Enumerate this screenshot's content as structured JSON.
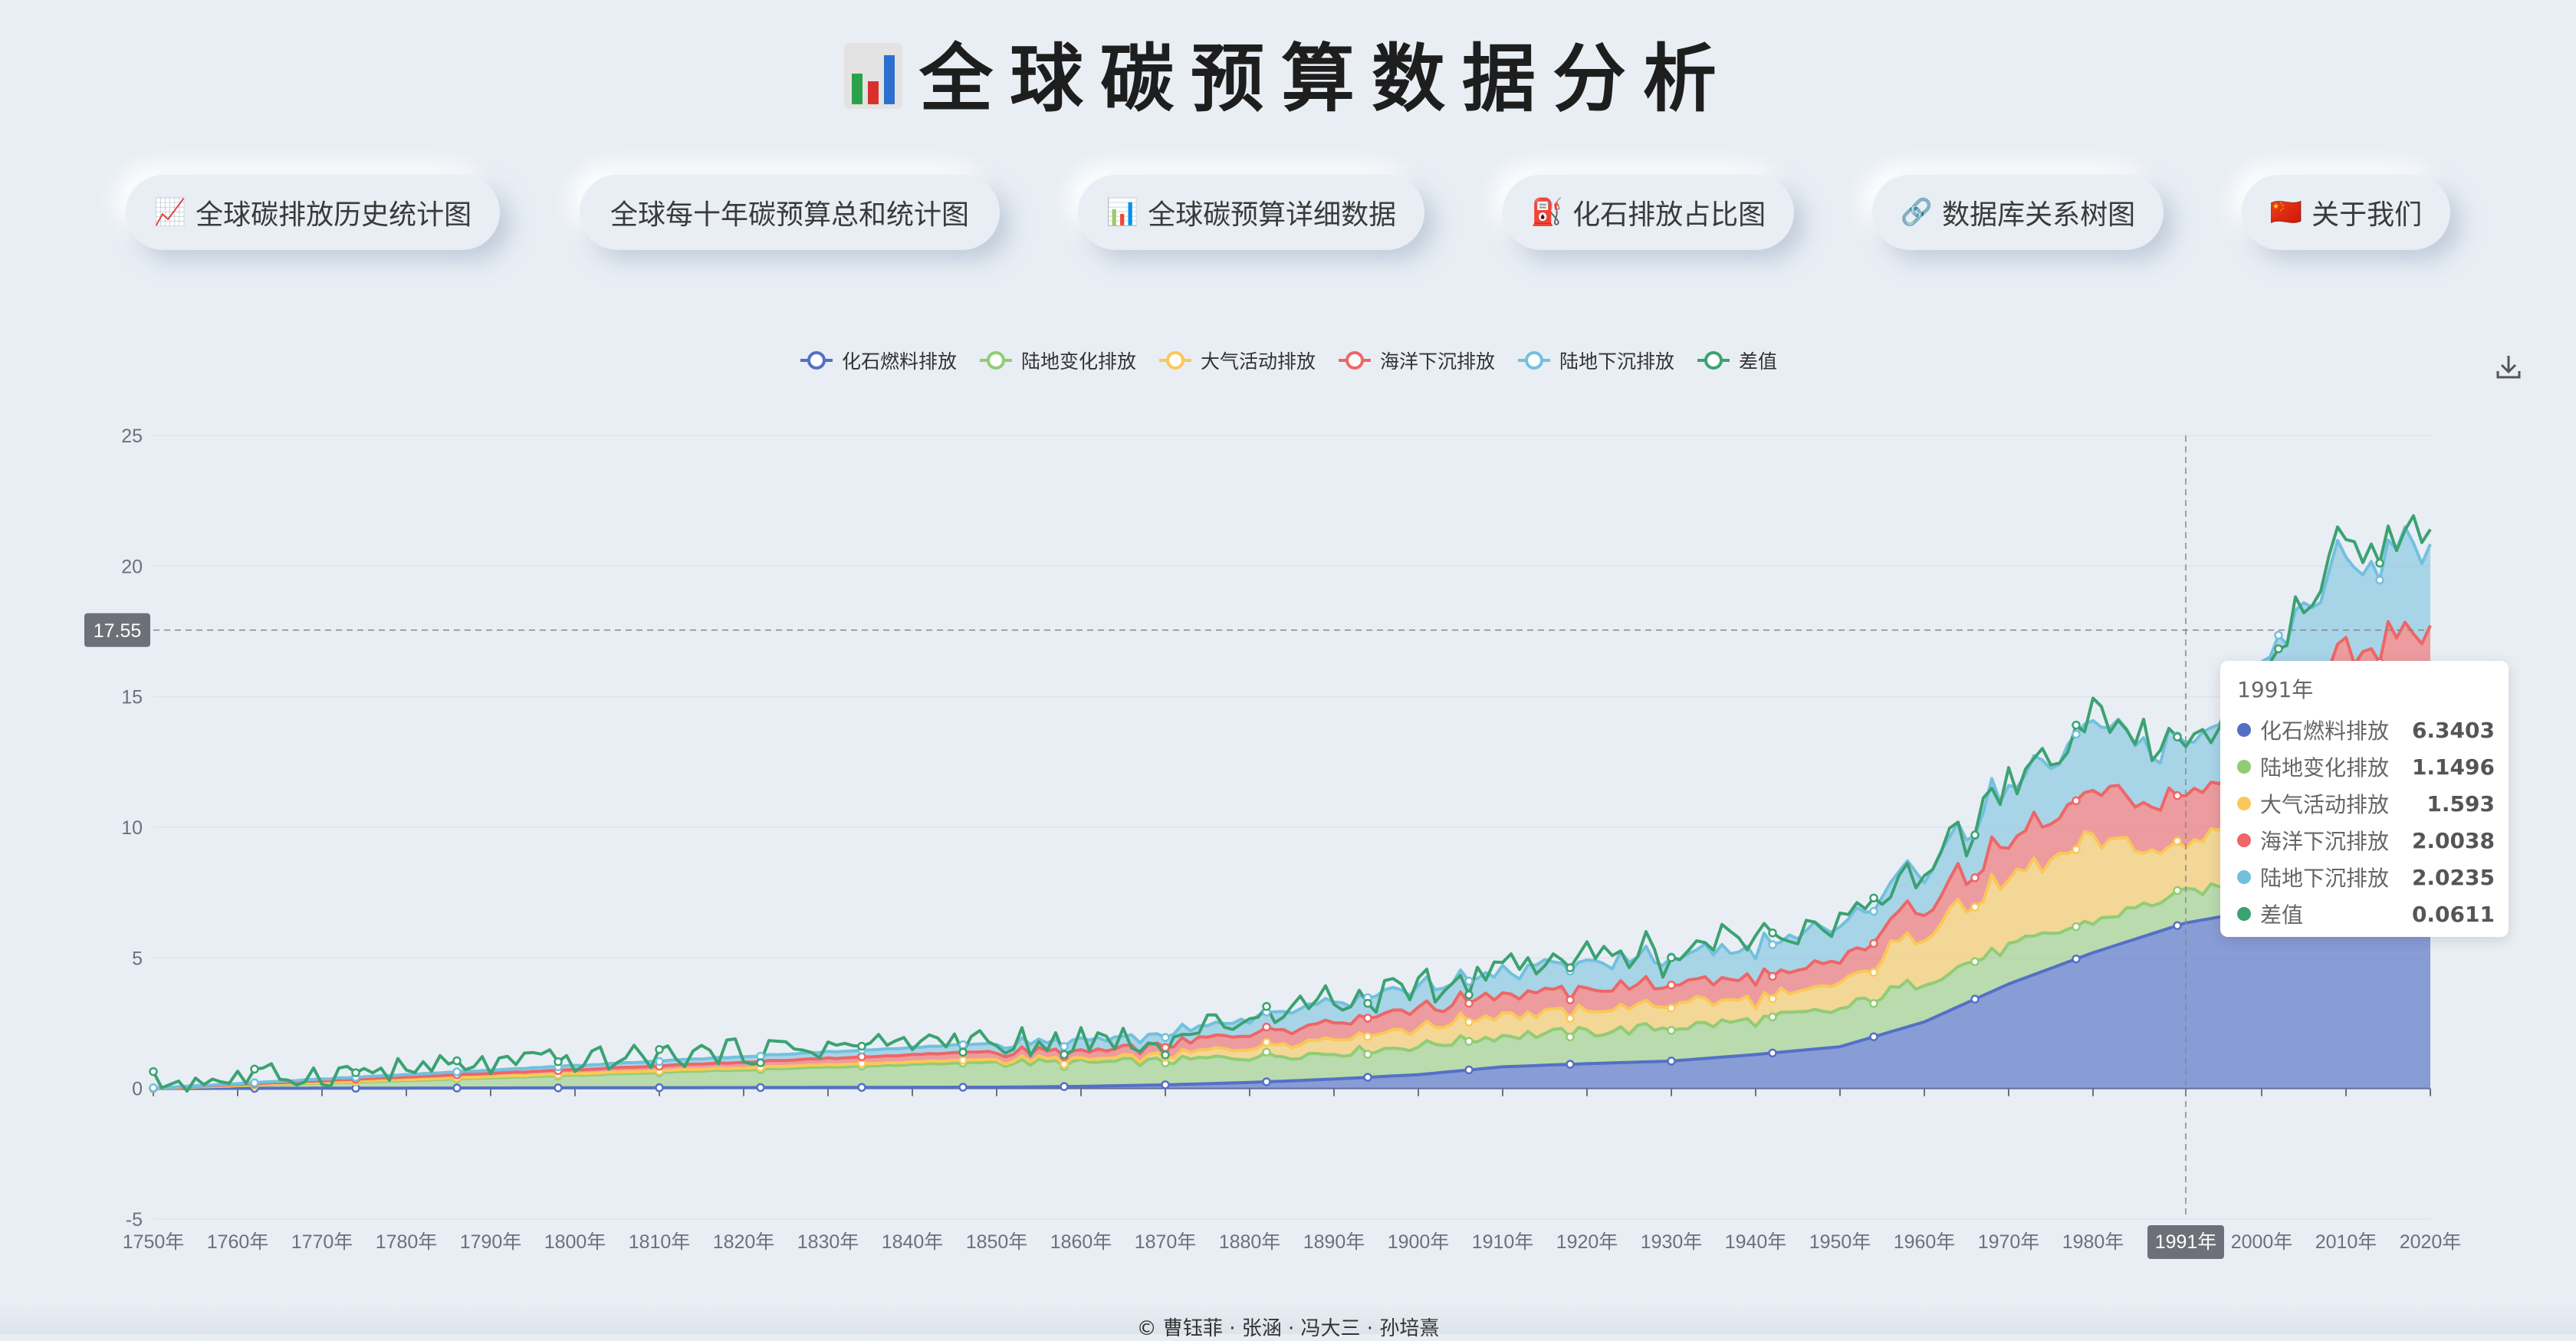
{
  "title": "全球碳预算数据分析",
  "nav": [
    {
      "icon": "📈",
      "label": "全球碳排放历史统计图"
    },
    {
      "icon": "",
      "label": "全球每十年碳预算总和统计图"
    },
    {
      "icon": "📊",
      "label": "全球碳预算详细数据"
    },
    {
      "icon": "⛽",
      "label": "化石排放占比图"
    },
    {
      "icon": "🔗",
      "label": "数据库关系树图"
    },
    {
      "icon": "🇨🇳",
      "label": "关于我们"
    }
  ],
  "footer": "© 曹钰菲 · 张涵 · 冯大三 · 孙培熹",
  "colors": {
    "fossil": "#5470c6",
    "land_use": "#91cc75",
    "atmosphere": "#fac858",
    "ocean": "#ee6666",
    "land_sink": "#73c0de",
    "imbalance": "#3ba272"
  },
  "chart_data": {
    "type": "area",
    "stacked": true,
    "legend": [
      "化石燃料排放",
      "陆地变化排放",
      "大气活动排放",
      "海洋下沉排放",
      "陆地下沉排放",
      "差值"
    ],
    "x_ticks": [
      "1750年",
      "1760年",
      "1770年",
      "1780年",
      "1790年",
      "1800年",
      "1810年",
      "1820年",
      "1830年",
      "1840年",
      "1850年",
      "1860年",
      "1870年",
      "1880年",
      "1890年",
      "1900年",
      "1910年",
      "1920年",
      "1930年",
      "1940年",
      "1950年",
      "1960年",
      "1970年",
      "1980年",
      "1991年",
      "2000年",
      "2010年",
      "2020年"
    ],
    "ylim": [
      -5,
      25
    ],
    "y_ticks": [
      -5,
      0,
      5,
      10,
      15,
      20,
      25
    ],
    "crosshair": {
      "x_label": "1991年",
      "y_label": "17.55"
    },
    "series": [
      {
        "name": "化石燃料排放",
        "x": [
          1750,
          1850,
          1860,
          1870,
          1880,
          1890,
          1900,
          1910,
          1920,
          1930,
          1940,
          1950,
          1960,
          1970,
          1980,
          1991,
          2000,
          2010,
          2020
        ],
        "values": [
          0,
          0.05,
          0.08,
          0.14,
          0.23,
          0.36,
          0.53,
          0.83,
          0.95,
          1.05,
          1.3,
          1.6,
          2.55,
          4.0,
          5.2,
          6.34,
          6.85,
          8.9,
          9.5
        ]
      },
      {
        "name": "陆地变化排放",
        "x": [
          1750,
          1850,
          1860,
          1870,
          1880,
          1890,
          1900,
          1910,
          1920,
          1930,
          1940,
          1950,
          1960,
          1970,
          1980,
          1991,
          2000,
          2010,
          2020
        ],
        "values": [
          0,
          0.95,
          0.9,
          0.9,
          1.0,
          1.0,
          1.1,
          1.2,
          1.2,
          1.3,
          1.3,
          1.4,
          1.6,
          1.4,
          1.2,
          1.15,
          1.1,
          1.2,
          1.1
        ]
      },
      {
        "name": "大气活动排放",
        "x": [
          1750,
          1850,
          1860,
          1870,
          1880,
          1890,
          1900,
          1910,
          1920,
          1930,
          1940,
          1950,
          1960,
          1970,
          1980,
          1991,
          2000,
          2010,
          2020
        ],
        "values": [
          0,
          0.1,
          0.1,
          0.2,
          0.4,
          0.6,
          0.7,
          0.8,
          0.8,
          0.9,
          0.8,
          0.9,
          2.0,
          2.5,
          3.0,
          1.59,
          3.3,
          4.5,
          4.4
        ]
      },
      {
        "name": "海洋下沉排放",
        "x": [
          1750,
          1850,
          1860,
          1870,
          1880,
          1890,
          1900,
          1910,
          1920,
          1930,
          1940,
          1950,
          1960,
          1970,
          1980,
          1991,
          2000,
          2010,
          2020
        ],
        "values": [
          0,
          0.3,
          0.3,
          0.4,
          0.5,
          0.6,
          0.7,
          0.8,
          0.8,
          0.8,
          0.8,
          0.9,
          1.1,
          1.4,
          1.7,
          2.0,
          2.1,
          2.5,
          2.8
        ]
      },
      {
        "name": "陆地下沉排放",
        "x": [
          1750,
          1850,
          1860,
          1870,
          1880,
          1890,
          1900,
          1910,
          1920,
          1930,
          1940,
          1950,
          1960,
          1970,
          1980,
          1991,
          2000,
          2010,
          2020
        ],
        "values": [
          0,
          0.3,
          0.4,
          0.4,
          0.6,
          0.8,
          0.8,
          0.9,
          1.0,
          1.0,
          1.2,
          1.3,
          1.5,
          2.1,
          2.4,
          2.02,
          2.8,
          3.5,
          3.3
        ]
      },
      {
        "name": "差值",
        "x": [
          1750,
          1850,
          1860,
          1870,
          1880,
          1890,
          1900,
          1910,
          1920,
          1930,
          1940,
          1950,
          1960,
          1970,
          1980,
          1991,
          2000,
          2010,
          2020
        ],
        "values": [
          0,
          -0.2,
          0.1,
          -0.2,
          0.1,
          0.2,
          -0.3,
          0.2,
          0.3,
          0.1,
          0.5,
          0.1,
          -0.3,
          0.1,
          0.3,
          0.06,
          -0.4,
          0.4,
          0.5
        ]
      }
    ]
  },
  "tooltip": {
    "title": "1991年",
    "rows": [
      {
        "name": "化石燃料排放",
        "value": "6.3403",
        "color": "#5470c6"
      },
      {
        "name": "陆地变化排放",
        "value": "1.1496",
        "color": "#91cc75"
      },
      {
        "name": "大气活动排放",
        "value": "1.593",
        "color": "#fac858"
      },
      {
        "name": "海洋下沉排放",
        "value": "2.0038",
        "color": "#ee6666"
      },
      {
        "name": "陆地下沉排放",
        "value": "2.0235",
        "color": "#73c0de"
      },
      {
        "name": "差值",
        "value": "0.0611",
        "color": "#3ba272"
      }
    ]
  }
}
